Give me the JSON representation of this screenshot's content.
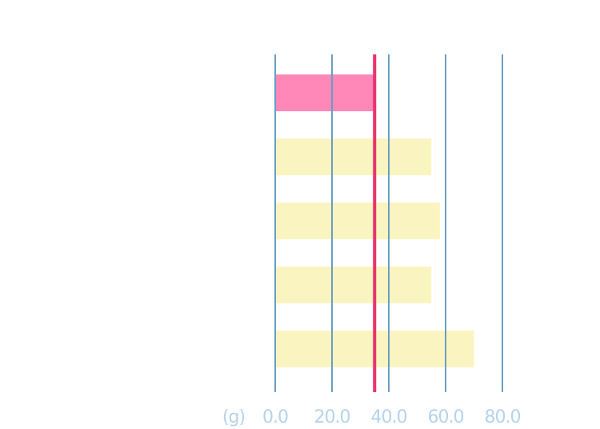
{
  "chart_data": {
    "type": "hbar",
    "categories": [
      null,
      null,
      null,
      null,
      null
    ],
    "values": [
      35,
      55,
      58,
      55,
      70
    ],
    "colors": [
      "#ff88b8",
      "#faf5c0",
      "#faf5c0",
      "#faf5c0",
      "#faf5c0"
    ],
    "reference_line": {
      "value": 35,
      "color": "#e8336a"
    },
    "x_label": "(g)",
    "xlim": [
      0,
      80
    ],
    "xticks": [
      {
        "value": 0,
        "label": "0.0"
      },
      {
        "value": 20,
        "label": "20.0"
      },
      {
        "value": 40,
        "label": "40.0"
      },
      {
        "value": 60,
        "label": "60.0"
      },
      {
        "value": 80,
        "label": "80.0"
      }
    ],
    "grid": true,
    "grid_color": "#6a9ec4"
  }
}
